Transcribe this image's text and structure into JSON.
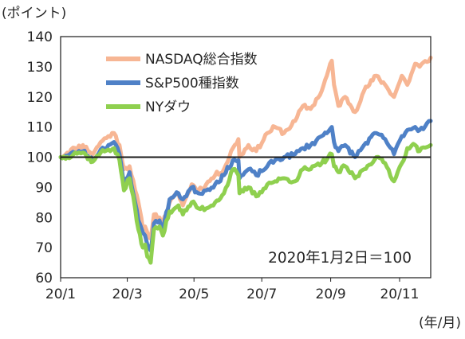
{
  "chart_data": {
    "type": "line",
    "ylabel": "(ポイント)",
    "xlabel": "(年/月)",
    "ylim": [
      60,
      140
    ],
    "y_ticks": [
      "60",
      "70",
      "80",
      "90",
      "100",
      "110",
      "120",
      "130",
      "140"
    ],
    "x_tick_labels": [
      "20/1",
      "20/3",
      "20/5",
      "20/7",
      "20/9",
      "20/11"
    ],
    "x_tick_dates": [
      "2020-01-02",
      "2020-03-02",
      "2020-05-01",
      "2020-07-01",
      "2020-09-01",
      "2020-11-02"
    ],
    "x_range": [
      "2020-01-02",
      "2020-11-30"
    ],
    "grid": false,
    "reference_line": 100,
    "annotation": "2020年1月2日＝100",
    "legend_position": "top-left",
    "series": [
      {
        "name": "NASDAQ総合指数",
        "color": "#f7b694",
        "points": [
          [
            "2020-01-02",
            100
          ],
          [
            "2020-01-08",
            101.5
          ],
          [
            "2020-01-15",
            103
          ],
          [
            "2020-01-22",
            104
          ],
          [
            "2020-01-31",
            101
          ],
          [
            "2020-02-07",
            105
          ],
          [
            "2020-02-14",
            107
          ],
          [
            "2020-02-19",
            108
          ],
          [
            "2020-02-24",
            104
          ],
          [
            "2020-02-28",
            96
          ],
          [
            "2020-03-04",
            97
          ],
          [
            "2020-03-09",
            89
          ],
          [
            "2020-03-12",
            85
          ],
          [
            "2020-03-16",
            76
          ],
          [
            "2020-03-18",
            77
          ],
          [
            "2020-03-20",
            75
          ],
          [
            "2020-03-23",
            73
          ],
          [
            "2020-03-26",
            81
          ],
          [
            "2020-03-31",
            80
          ],
          [
            "2020-04-03",
            78
          ],
          [
            "2020-04-09",
            85
          ],
          [
            "2020-04-17",
            88
          ],
          [
            "2020-04-21",
            84
          ],
          [
            "2020-04-29",
            91
          ],
          [
            "2020-05-05",
            89
          ],
          [
            "2020-05-12",
            91
          ],
          [
            "2020-05-20",
            94
          ],
          [
            "2020-05-28",
            96
          ],
          [
            "2020-06-05",
            103
          ],
          [
            "2020-06-10",
            106
          ],
          [
            "2020-06-11",
            100
          ],
          [
            "2020-06-19",
            104
          ],
          [
            "2020-06-26",
            102
          ],
          [
            "2020-07-06",
            108
          ],
          [
            "2020-07-13",
            110
          ],
          [
            "2020-07-21",
            108
          ],
          [
            "2020-07-31",
            112
          ],
          [
            "2020-08-07",
            117
          ],
          [
            "2020-08-14",
            116
          ],
          [
            "2020-08-24",
            122
          ],
          [
            "2020-09-02",
            132
          ],
          [
            "2020-09-04",
            124
          ],
          [
            "2020-09-08",
            117
          ],
          [
            "2020-09-14",
            120
          ],
          [
            "2020-09-23",
            115
          ],
          [
            "2020-10-01",
            122
          ],
          [
            "2020-10-12",
            127
          ],
          [
            "2020-10-20",
            124
          ],
          [
            "2020-10-28",
            120
          ],
          [
            "2020-11-04",
            127
          ],
          [
            "2020-11-09",
            124
          ],
          [
            "2020-11-16",
            131
          ],
          [
            "2020-11-20",
            130
          ],
          [
            "2020-11-30",
            133
          ]
        ]
      },
      {
        "name": "S&P500種指数",
        "color": "#4f81c7",
        "points": [
          [
            "2020-01-02",
            100
          ],
          [
            "2020-01-08",
            100.5
          ],
          [
            "2020-01-15",
            101.5
          ],
          [
            "2020-01-22",
            102
          ],
          [
            "2020-01-31",
            99
          ],
          [
            "2020-02-07",
            102.5
          ],
          [
            "2020-02-14",
            104
          ],
          [
            "2020-02-19",
            105
          ],
          [
            "2020-02-24",
            101
          ],
          [
            "2020-02-28",
            91
          ],
          [
            "2020-03-04",
            95
          ],
          [
            "2020-03-09",
            85
          ],
          [
            "2020-03-12",
            79
          ],
          [
            "2020-03-16",
            75
          ],
          [
            "2020-03-18",
            74
          ],
          [
            "2020-03-20",
            71
          ],
          [
            "2020-03-23",
            69
          ],
          [
            "2020-03-26",
            78
          ],
          [
            "2020-03-31",
            79
          ],
          [
            "2020-04-03",
            76
          ],
          [
            "2020-04-09",
            86
          ],
          [
            "2020-04-17",
            88
          ],
          [
            "2020-04-21",
            86
          ],
          [
            "2020-04-29",
            90
          ],
          [
            "2020-05-05",
            88
          ],
          [
            "2020-05-12",
            89
          ],
          [
            "2020-05-20",
            91
          ],
          [
            "2020-05-28",
            94
          ],
          [
            "2020-06-05",
            99
          ],
          [
            "2020-06-10",
            99
          ],
          [
            "2020-06-11",
            93
          ],
          [
            "2020-06-19",
            96
          ],
          [
            "2020-06-26",
            94
          ],
          [
            "2020-07-06",
            97
          ],
          [
            "2020-07-13",
            99
          ],
          [
            "2020-07-21",
            100
          ],
          [
            "2020-07-31",
            101
          ],
          [
            "2020-08-07",
            103
          ],
          [
            "2020-08-14",
            104
          ],
          [
            "2020-08-24",
            107
          ],
          [
            "2020-09-02",
            110
          ],
          [
            "2020-09-04",
            105
          ],
          [
            "2020-09-08",
            102
          ],
          [
            "2020-09-14",
            104
          ],
          [
            "2020-09-23",
            100
          ],
          [
            "2020-10-01",
            104
          ],
          [
            "2020-10-12",
            108
          ],
          [
            "2020-10-20",
            106
          ],
          [
            "2020-10-28",
            101
          ],
          [
            "2020-11-04",
            107
          ],
          [
            "2020-11-09",
            109
          ],
          [
            "2020-11-16",
            110
          ],
          [
            "2020-11-20",
            109
          ],
          [
            "2020-11-30",
            112
          ]
        ]
      },
      {
        "name": "NYダウ",
        "color": "#8fd04f",
        "points": [
          [
            "2020-01-02",
            100
          ],
          [
            "2020-01-08",
            100
          ],
          [
            "2020-01-15",
            101.5
          ],
          [
            "2020-01-22",
            101.5
          ],
          [
            "2020-01-31",
            98.5
          ],
          [
            "2020-02-07",
            101.5
          ],
          [
            "2020-02-14",
            102.5
          ],
          [
            "2020-02-19",
            103
          ],
          [
            "2020-02-24",
            99
          ],
          [
            "2020-02-28",
            89
          ],
          [
            "2020-03-04",
            93
          ],
          [
            "2020-03-09",
            83
          ],
          [
            "2020-03-12",
            76
          ],
          [
            "2020-03-16",
            70
          ],
          [
            "2020-03-18",
            71
          ],
          [
            "2020-03-20",
            67
          ],
          [
            "2020-03-23",
            65
          ],
          [
            "2020-03-26",
            76
          ],
          [
            "2020-03-31",
            77
          ],
          [
            "2020-04-03",
            74
          ],
          [
            "2020-04-09",
            82
          ],
          [
            "2020-04-17",
            84
          ],
          [
            "2020-04-21",
            81
          ],
          [
            "2020-04-29",
            85
          ],
          [
            "2020-05-05",
            83
          ],
          [
            "2020-05-12",
            83
          ],
          [
            "2020-05-20",
            85
          ],
          [
            "2020-05-28",
            88
          ],
          [
            "2020-06-05",
            96
          ],
          [
            "2020-06-10",
            94
          ],
          [
            "2020-06-11",
            88
          ],
          [
            "2020-06-19",
            90
          ],
          [
            "2020-06-26",
            87
          ],
          [
            "2020-07-06",
            91
          ],
          [
            "2020-07-13",
            92
          ],
          [
            "2020-07-21",
            93
          ],
          [
            "2020-07-31",
            92
          ],
          [
            "2020-08-07",
            96
          ],
          [
            "2020-08-14",
            96
          ],
          [
            "2020-08-24",
            98
          ],
          [
            "2020-09-02",
            101
          ],
          [
            "2020-09-04",
            97
          ],
          [
            "2020-09-08",
            95
          ],
          [
            "2020-09-14",
            97
          ],
          [
            "2020-09-23",
            93
          ],
          [
            "2020-10-01",
            96
          ],
          [
            "2020-10-12",
            100
          ],
          [
            "2020-10-20",
            98
          ],
          [
            "2020-10-28",
            92
          ],
          [
            "2020-11-04",
            98
          ],
          [
            "2020-11-09",
            103
          ],
          [
            "2020-11-16",
            104
          ],
          [
            "2020-11-20",
            102
          ],
          [
            "2020-11-30",
            104
          ]
        ]
      }
    ]
  }
}
